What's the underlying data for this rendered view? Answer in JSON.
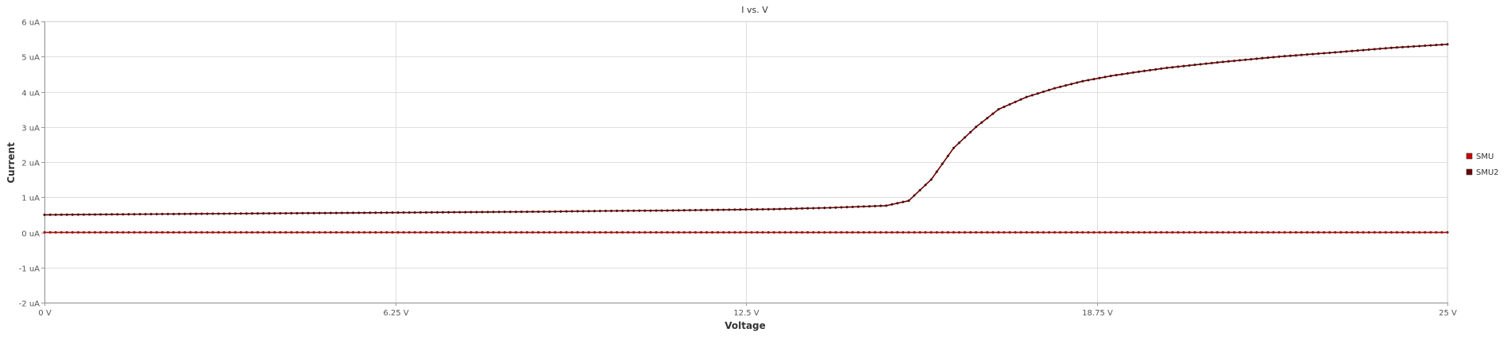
{
  "chart_data": {
    "type": "line",
    "title": "I vs. V",
    "xlabel": "Voltage",
    "ylabel": "Current",
    "xlim": [
      0,
      25
    ],
    "ylim": [
      -2,
      6
    ],
    "x_ticks": [
      {
        "value": 0,
        "label": "0 V"
      },
      {
        "value": 6.25,
        "label": "6.25 V"
      },
      {
        "value": 12.5,
        "label": "12.5 V"
      },
      {
        "value": 18.75,
        "label": "18.75 V"
      },
      {
        "value": 25,
        "label": "25 V"
      }
    ],
    "y_ticks": [
      {
        "value": 6,
        "label": "6 uA"
      },
      {
        "value": 5,
        "label": "5 uA"
      },
      {
        "value": 4,
        "label": "4 uA"
      },
      {
        "value": 3,
        "label": "3 uA"
      },
      {
        "value": 2,
        "label": "2 uA"
      },
      {
        "value": 1,
        "label": "1 uA"
      },
      {
        "value": 0,
        "label": "0 uA"
      },
      {
        "value": -1,
        "label": "-1 uA"
      },
      {
        "value": -2,
        "label": "-2 uA"
      }
    ],
    "grid": true,
    "legend_position": "right",
    "series": [
      {
        "name": "SMU",
        "color": "#cc0000",
        "x": [
          0,
          1,
          2,
          3,
          4,
          5,
          6,
          7,
          8,
          9,
          10,
          11,
          12,
          13,
          14,
          15,
          16,
          17,
          18,
          19,
          20,
          21,
          22,
          23,
          24,
          25
        ],
        "y": [
          0,
          0,
          0,
          0,
          0,
          0,
          0,
          0,
          0,
          0,
          0,
          0,
          0,
          0,
          0,
          0,
          0,
          0,
          0,
          0,
          0,
          0,
          0,
          0,
          0,
          0
        ]
      },
      {
        "name": "SMU2",
        "color": "#6b0000",
        "x": [
          0,
          1,
          2,
          3,
          4,
          5,
          6,
          7,
          8,
          9,
          10,
          11,
          12,
          13,
          14,
          15,
          15.4,
          15.8,
          16.2,
          16.6,
          17,
          17.5,
          18,
          18.5,
          19,
          19.5,
          20,
          21,
          22,
          23,
          24,
          25
        ],
        "y": [
          0.5,
          0.51,
          0.52,
          0.53,
          0.54,
          0.55,
          0.56,
          0.57,
          0.58,
          0.59,
          0.61,
          0.62,
          0.64,
          0.66,
          0.7,
          0.76,
          0.9,
          1.5,
          2.4,
          3.0,
          3.5,
          3.85,
          4.1,
          4.3,
          4.45,
          4.57,
          4.68,
          4.85,
          5.0,
          5.12,
          5.25,
          5.35
        ]
      }
    ]
  }
}
